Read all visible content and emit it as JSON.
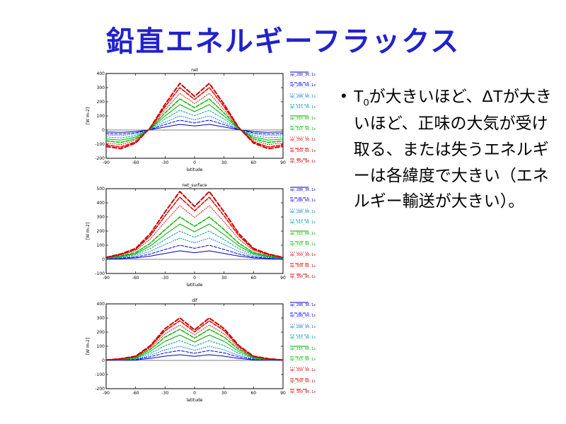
{
  "slide": {
    "title": "鉛直エネルギーフラックス",
    "title_color": "#2222cc",
    "background_color": "#ffffff"
  },
  "bullet": {
    "marker": "•",
    "t_base": "T",
    "t_sub": "0",
    "text_after_t0": "が大きいほど、ΔTが大きいほど、正味の大気が受け取る、または失うエネルギーは各緯度で大きい（エネルギー輸送が大きい）。"
  },
  "chart_data": [
    {
      "type": "line",
      "title": "net",
      "xlabel": "latitude",
      "ylabel": "[W m-2]",
      "xlim": [
        -90,
        90
      ],
      "ylim": [
        -200,
        400
      ],
      "xticks": [
        -90,
        -60,
        -30,
        0,
        30,
        60,
        90
      ],
      "yticks": [
        -200,
        -100,
        0,
        100,
        200,
        300,
        400
      ],
      "grid": false,
      "legend_position": "right",
      "x": [
        -90,
        -75,
        -60,
        -45,
        -30,
        -15,
        0,
        15,
        30,
        45,
        60,
        75,
        90
      ],
      "series": [
        {
          "name": "ap_288_30.1s",
          "color": "#0000bb",
          "dash": "",
          "width": 1,
          "values": [
            -14,
            -16,
            -11,
            2,
            22,
            40,
            29,
            40,
            22,
            2,
            -11,
            -16,
            -14
          ]
        },
        {
          "name": "ap_288_60.1s",
          "color": "#0000ee",
          "dash": "4 2",
          "width": 1,
          "values": [
            -25,
            -28,
            -20,
            4,
            39,
            70,
            50,
            70,
            39,
            4,
            -20,
            -28,
            -25
          ]
        },
        {
          "name": "ap_288_90.1s",
          "color": "#0077dd",
          "dash": "1 2",
          "width": 1,
          "values": [
            -35,
            -40,
            -28,
            5,
            55,
            100,
            72,
            100,
            55,
            5,
            -28,
            -40,
            -35
          ]
        },
        {
          "name": "ap_315_30.1s",
          "color": "#009999",
          "dash": "2 2",
          "width": 1,
          "values": [
            -49,
            -56,
            -39,
            7,
            77,
            140,
            101,
            140,
            77,
            7,
            -39,
            -56,
            -49
          ]
        },
        {
          "name": "ap_315_60.1s",
          "color": "#00aa00",
          "dash": "",
          "width": 1,
          "values": [
            -63,
            -72,
            -50,
            9,
            99,
            180,
            130,
            180,
            99,
            9,
            -50,
            -72,
            -63
          ]
        },
        {
          "name": "ap_315_90.1s",
          "color": "#00bb00",
          "dash": "5 2",
          "width": 1.5,
          "values": [
            -77,
            -88,
            -62,
            11,
            121,
            220,
            158,
            220,
            121,
            11,
            -62,
            -88,
            -77
          ]
        },
        {
          "name": "ap_350_30.1s",
          "color": "#dd0000",
          "dash": "1 2",
          "width": 1,
          "values": [
            -91,
            -104,
            -73,
            13,
            143,
            260,
            187,
            260,
            143,
            13,
            -73,
            -104,
            -91
          ]
        },
        {
          "name": "ap_350_60.1s",
          "color": "#dd0000",
          "dash": "5 2",
          "width": 1.5,
          "values": [
            -105,
            -120,
            -84,
            15,
            165,
            300,
            216,
            300,
            165,
            15,
            -84,
            -120,
            -105
          ]
        },
        {
          "name": "ap_350_90.1s",
          "color": "#cc0000",
          "dash": "6 3",
          "width": 2,
          "values": [
            -116,
            -132,
            -92,
            17,
            182,
            330,
            238,
            330,
            182,
            17,
            -92,
            -132,
            -116
          ]
        }
      ]
    },
    {
      "type": "line",
      "title": "net_surface",
      "xlabel": "latitude",
      "ylabel": "[W m-2]",
      "xlim": [
        -90,
        90
      ],
      "ylim": [
        -100,
        500
      ],
      "xticks": [
        -90,
        -60,
        -30,
        0,
        30,
        60,
        90
      ],
      "yticks": [
        -100,
        0,
        100,
        200,
        300,
        400,
        500
      ],
      "grid": false,
      "legend_position": "right",
      "x": [
        -90,
        -75,
        -60,
        -45,
        -30,
        -15,
        0,
        15,
        30,
        45,
        60,
        75,
        90
      ],
      "series": [
        {
          "name": "ap_288_30.1s",
          "color": "#0000bb",
          "dash": "",
          "width": 1,
          "values": [
            2,
            5,
            10,
            23,
            42,
            60,
            47,
            60,
            42,
            23,
            10,
            5,
            2
          ]
        },
        {
          "name": "ap_288_60.1s",
          "color": "#0000ee",
          "dash": "4 2",
          "width": 1,
          "values": [
            3,
            8,
            16,
            38,
            70,
            100,
            78,
            100,
            70,
            38,
            16,
            8,
            3
          ]
        },
        {
          "name": "ap_288_90.1s",
          "color": "#0077dd",
          "dash": "1 2",
          "width": 1,
          "values": [
            5,
            12,
            24,
            57,
            105,
            150,
            117,
            150,
            105,
            57,
            24,
            12,
            5
          ]
        },
        {
          "name": "ap_315_30.1s",
          "color": "#009999",
          "dash": "2 2",
          "width": 1,
          "values": [
            6,
            16,
            32,
            76,
            140,
            200,
            156,
            200,
            140,
            76,
            32,
            16,
            6
          ]
        },
        {
          "name": "ap_315_60.1s",
          "color": "#00aa00",
          "dash": "",
          "width": 1,
          "values": [
            8,
            20,
            40,
            95,
            175,
            250,
            195,
            250,
            175,
            95,
            40,
            20,
            8
          ]
        },
        {
          "name": "ap_315_90.1s",
          "color": "#00bb00",
          "dash": "5 2",
          "width": 1.5,
          "values": [
            9,
            24,
            48,
            114,
            210,
            300,
            234,
            300,
            210,
            114,
            48,
            24,
            9
          ]
        },
        {
          "name": "ap_350_30.1s",
          "color": "#dd0000",
          "dash": "1 2",
          "width": 1,
          "values": [
            11,
            30,
            61,
            144,
            266,
            380,
            296,
            380,
            266,
            144,
            61,
            30,
            11
          ]
        },
        {
          "name": "ap_350_60.1s",
          "color": "#dd0000",
          "dash": "5 2",
          "width": 1.5,
          "values": [
            13,
            35,
            70,
            167,
            308,
            440,
            343,
            440,
            308,
            167,
            70,
            35,
            13
          ]
        },
        {
          "name": "ap_350_90.1s",
          "color": "#cc0000",
          "dash": "6 3",
          "width": 2,
          "values": [
            14,
            38,
            77,
            182,
            336,
            480,
            374,
            480,
            336,
            182,
            77,
            38,
            14
          ]
        }
      ]
    },
    {
      "type": "line",
      "title": "dif",
      "xlabel": "latitude",
      "ylabel": "[W m-2]",
      "xlim": [
        -90,
        90
      ],
      "ylim": [
        -200,
        400
      ],
      "xticks": [
        -90,
        -60,
        -30,
        0,
        30,
        60,
        90
      ],
      "yticks": [
        -200,
        -100,
        0,
        100,
        200,
        300,
        400
      ],
      "grid": false,
      "legend_position": "right",
      "x": [
        -90,
        -75,
        -60,
        -45,
        -30,
        -15,
        0,
        15,
        30,
        45,
        60,
        75,
        90
      ],
      "series": [
        {
          "name": "ap_288_30.1s",
          "color": "#0000bb",
          "dash": "",
          "width": 1,
          "values": [
            0,
            2,
            4,
            14,
            30,
            40,
            29,
            40,
            30,
            14,
            4,
            2,
            0
          ]
        },
        {
          "name": "ap_288_60.1s",
          "color": "#0000ee",
          "dash": "4 2",
          "width": 1,
          "values": [
            1,
            3,
            7,
            25,
            53,
            70,
            50,
            70,
            53,
            25,
            7,
            3,
            1
          ]
        },
        {
          "name": "ap_288_90.1s",
          "color": "#0077dd",
          "dash": "1 2",
          "width": 1,
          "values": [
            1,
            4,
            10,
            35,
            75,
            100,
            72,
            100,
            75,
            35,
            10,
            4,
            1
          ]
        },
        {
          "name": "ap_315_30.1s",
          "color": "#009999",
          "dash": "2 2",
          "width": 1,
          "values": [
            1,
            6,
            14,
            49,
            105,
            140,
            101,
            140,
            105,
            49,
            14,
            6,
            1
          ]
        },
        {
          "name": "ap_315_60.1s",
          "color": "#00aa00",
          "dash": "",
          "width": 1,
          "values": [
            2,
            7,
            18,
            63,
            135,
            180,
            130,
            180,
            135,
            63,
            18,
            7,
            2
          ]
        },
        {
          "name": "ap_315_90.1s",
          "color": "#00bb00",
          "dash": "5 2",
          "width": 1.5,
          "values": [
            2,
            9,
            22,
            77,
            165,
            220,
            158,
            220,
            165,
            77,
            22,
            9,
            2
          ]
        },
        {
          "name": "ap_350_30.1s",
          "color": "#dd0000",
          "dash": "1 2",
          "width": 1,
          "values": [
            3,
            10,
            25,
            88,
            188,
            250,
            180,
            250,
            188,
            88,
            25,
            10,
            3
          ]
        },
        {
          "name": "ap_350_60.1s",
          "color": "#dd0000",
          "dash": "5 2",
          "width": 1.5,
          "values": [
            3,
            11,
            28,
            98,
            210,
            280,
            202,
            280,
            210,
            98,
            28,
            11,
            3
          ]
        },
        {
          "name": "ap_350_90.1s",
          "color": "#cc0000",
          "dash": "6 3",
          "width": 2,
          "values": [
            3,
            12,
            30,
            105,
            225,
            300,
            216,
            300,
            225,
            105,
            30,
            12,
            3
          ]
        }
      ]
    }
  ]
}
